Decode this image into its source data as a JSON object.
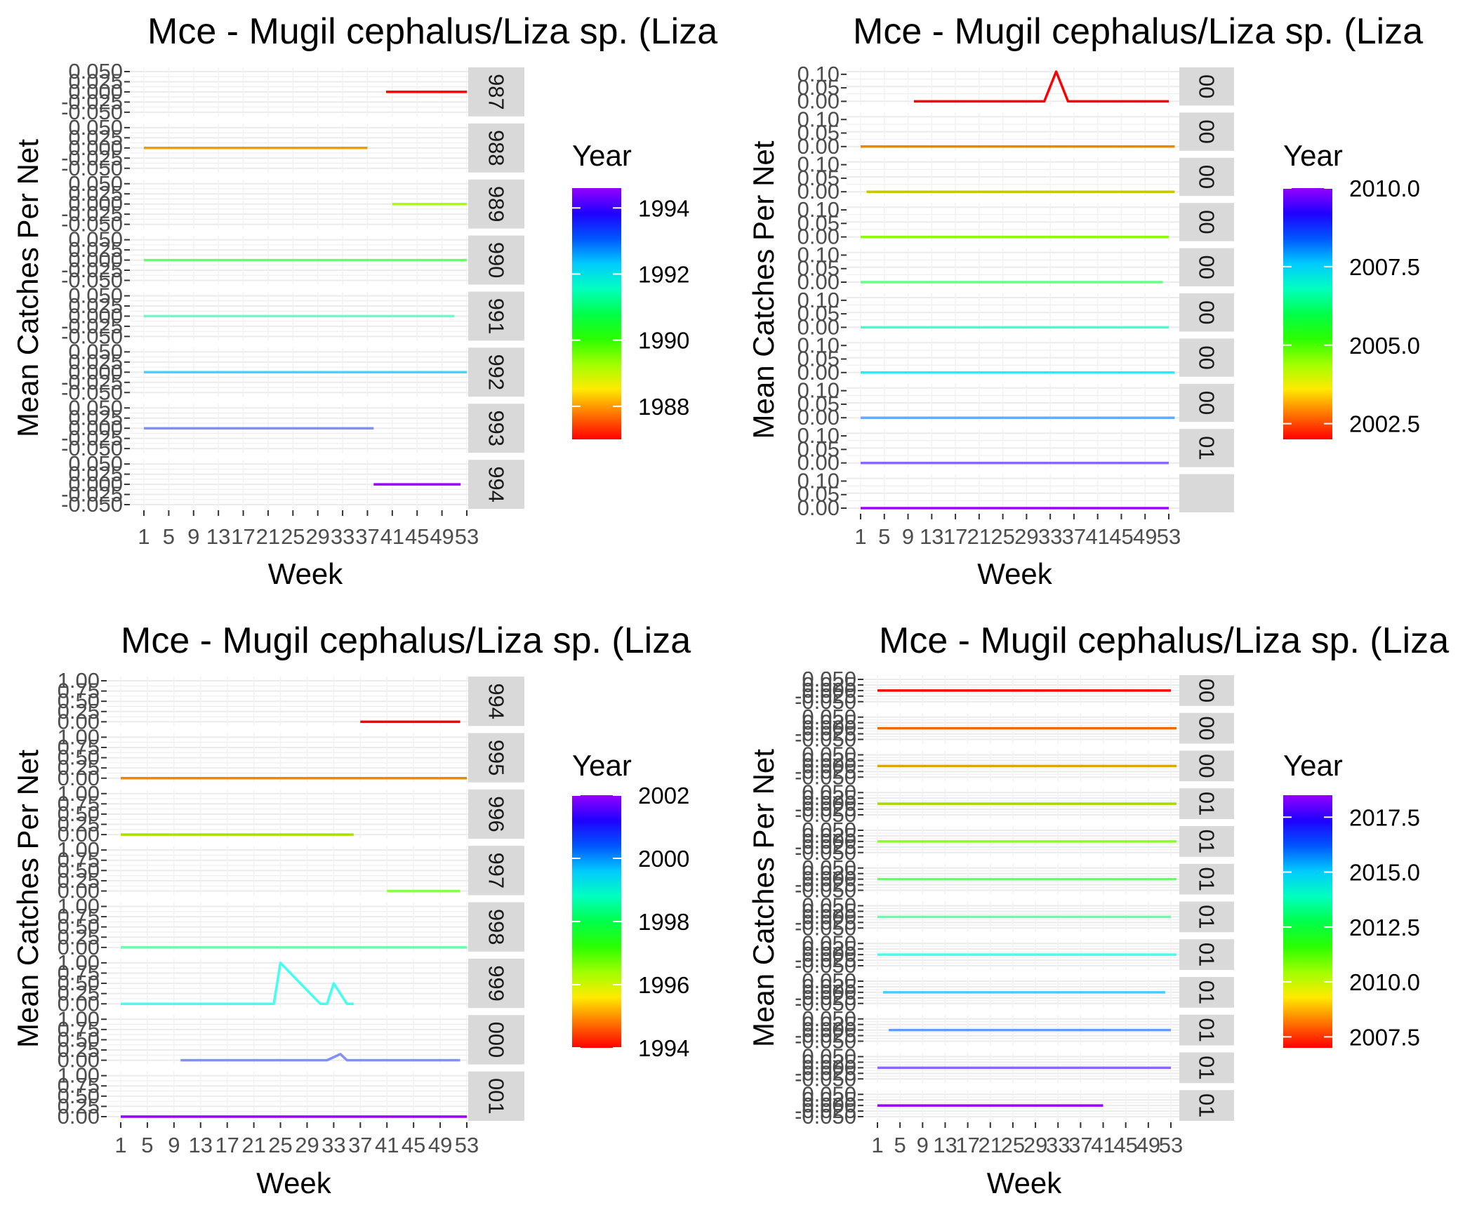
{
  "chart_data": [
    {
      "type": "line",
      "title": "Mce - Mugil cephalus/Liza sp. (Liza",
      "xlabel": "Week",
      "ylabel": "Mean Catches Per Net",
      "x_ticks": [
        "1",
        "5",
        "9",
        "13",
        "17",
        "21",
        "25",
        "29",
        "33",
        "37",
        "41",
        "45",
        "49",
        "53"
      ],
      "y_ticks": [
        "-0.050",
        "-0.025",
        "0.000",
        "0.025",
        "0.050"
      ],
      "ylim": [
        -0.05,
        0.05
      ],
      "strip_labels": [
        "987",
        "988",
        "989",
        "990",
        "991",
        "992",
        "993",
        "994"
      ],
      "legend": {
        "title": "Year",
        "labels": [
          "1994",
          "1992",
          "1990",
          "1988"
        ],
        "min": 1987,
        "max": 1994.6
      },
      "series": [
        {
          "year": 1987,
          "color": "#ff0000",
          "points": [
            [
              40,
              0
            ],
            [
              53,
              0
            ]
          ]
        },
        {
          "year": 1988,
          "color": "#e6a000",
          "points": [
            [
              1,
              0
            ],
            [
              37,
              0
            ]
          ]
        },
        {
          "year": 1989,
          "color": "#a8ff00",
          "points": [
            [
              41,
              0
            ],
            [
              53,
              0
            ]
          ]
        },
        {
          "year": 1990,
          "color": "#66ff66",
          "points": [
            [
              1,
              0
            ],
            [
              53,
              0
            ]
          ]
        },
        {
          "year": 1991,
          "color": "#66ffcc",
          "points": [
            [
              1,
              0
            ],
            [
              51,
              0
            ]
          ]
        },
        {
          "year": 1992,
          "color": "#44d4ff",
          "points": [
            [
              1,
              0
            ],
            [
              53,
              0
            ]
          ]
        },
        {
          "year": 1993,
          "color": "#7f8fff",
          "points": [
            [
              1,
              0
            ],
            [
              38,
              0
            ]
          ]
        },
        {
          "year": 1994,
          "color": "#9b00ff",
          "points": [
            [
              38,
              0
            ],
            [
              52,
              0
            ]
          ]
        }
      ]
    },
    {
      "type": "line",
      "title": "Mce - Mugil cephalus/Liza sp. (Liza",
      "xlabel": "Week",
      "ylabel": "Mean Catches Per Net",
      "x_ticks": [
        "1",
        "5",
        "9",
        "13",
        "17",
        "21",
        "25",
        "29",
        "33",
        "37",
        "41",
        "45",
        "49",
        "53"
      ],
      "y_ticks": [
        "0.00",
        "0.05",
        "0.10"
      ],
      "ylim": [
        0,
        0.11
      ],
      "strip_labels": [
        "00",
        "00",
        "00",
        "00",
        "00",
        "00",
        "00",
        "00",
        "01"
      ],
      "legend": {
        "title": "Year",
        "labels": [
          "2010.0",
          "2007.5",
          "2005.0",
          "2002.5"
        ],
        "min": 2002,
        "max": 2010
      },
      "series": [
        {
          "year": 2002,
          "color": "#ff0000",
          "points": [
            [
              10,
              0
            ],
            [
              32,
              0
            ],
            [
              34,
              0.11
            ],
            [
              36,
              0
            ],
            [
              53,
              0
            ]
          ]
        },
        {
          "year": 2003,
          "color": "#e68a00",
          "points": [
            [
              1,
              0
            ],
            [
              54,
              0
            ]
          ]
        },
        {
          "year": 2004,
          "color": "#c8c800",
          "points": [
            [
              2,
              0
            ],
            [
              54,
              0
            ]
          ]
        },
        {
          "year": 2005,
          "color": "#88ff00",
          "points": [
            [
              1,
              0
            ],
            [
              53,
              0
            ]
          ]
        },
        {
          "year": 2006,
          "color": "#66ff88",
          "points": [
            [
              1,
              0
            ],
            [
              52,
              0
            ]
          ]
        },
        {
          "year": 2007,
          "color": "#44ffcc",
          "points": [
            [
              1,
              0
            ],
            [
              53,
              0
            ]
          ]
        },
        {
          "year": 2008,
          "color": "#22eeff",
          "points": [
            [
              1,
              0
            ],
            [
              54,
              0
            ]
          ]
        },
        {
          "year": 2009,
          "color": "#66aaff",
          "points": [
            [
              1,
              0
            ],
            [
              54,
              0
            ]
          ]
        },
        {
          "year": 2010,
          "color": "#8866ff",
          "points": [
            [
              1,
              0
            ],
            [
              53,
              0
            ]
          ]
        },
        {
          "year": 2011,
          "color": "#9b00ff",
          "points": [
            [
              1,
              0
            ],
            [
              53,
              0
            ]
          ]
        }
      ]
    },
    {
      "type": "line",
      "title": "Mce - Mugil cephalus/Liza sp. (Liza",
      "xlabel": "Week",
      "ylabel": "Mean Catches Per Net",
      "x_ticks": [
        "1",
        "5",
        "9",
        "13",
        "17",
        "21",
        "25",
        "29",
        "33",
        "37",
        "41",
        "45",
        "49",
        "53"
      ],
      "y_ticks": [
        "0.00",
        "0.25",
        "0.50",
        "0.75",
        "1.00"
      ],
      "ylim": [
        0,
        1
      ],
      "strip_labels": [
        "994",
        "995",
        "996",
        "997",
        "998",
        "999",
        "000",
        "001"
      ],
      "legend": {
        "title": "Year",
        "labels": [
          "2002",
          "2000",
          "1998",
          "1996",
          "1994"
        ],
        "min": 1994,
        "max": 2002
      },
      "series": [
        {
          "year": 1994,
          "color": "#ff0000",
          "points": [
            [
              37,
              0
            ],
            [
              52,
              0
            ]
          ]
        },
        {
          "year": 1995,
          "color": "#e68a00",
          "points": [
            [
              1,
              0
            ],
            [
              53,
              0
            ]
          ]
        },
        {
          "year": 1996,
          "color": "#a8e000",
          "points": [
            [
              1,
              0
            ],
            [
              36,
              0
            ]
          ]
        },
        {
          "year": 1997,
          "color": "#88ff44",
          "points": [
            [
              41,
              0
            ],
            [
              52,
              0
            ]
          ]
        },
        {
          "year": 1998,
          "color": "#66ffaa",
          "points": [
            [
              1,
              0
            ],
            [
              53,
              0
            ]
          ]
        },
        {
          "year": 1999,
          "color": "#44ffee",
          "points": [
            [
              1,
              0
            ],
            [
              24,
              0
            ],
            [
              25,
              1
            ],
            [
              31,
              0
            ],
            [
              32,
              0
            ],
            [
              33,
              0.5
            ],
            [
              35,
              0
            ],
            [
              36,
              0
            ]
          ]
        },
        {
          "year": 2000,
          "color": "#7f8fff",
          "points": [
            [
              10,
              0
            ],
            [
              32,
              0
            ],
            [
              34,
              0.15
            ],
            [
              35,
              0
            ],
            [
              52,
              0
            ]
          ]
        },
        {
          "year": 2001,
          "color": "#9b00ff",
          "points": [
            [
              1,
              0
            ],
            [
              53,
              0
            ]
          ]
        }
      ]
    },
    {
      "type": "line",
      "title": "Mce - Mugil cephalus/Liza sp. (Liza",
      "xlabel": "Week",
      "ylabel": "Mean Catches Per Net",
      "x_ticks": [
        "1",
        "5",
        "9",
        "13",
        "17",
        "21",
        "25",
        "29",
        "33",
        "37",
        "41",
        "45",
        "49",
        "53"
      ],
      "y_ticks": [
        "-0.050",
        "-0.025",
        "0.000",
        "0.025",
        "0.050"
      ],
      "ylim": [
        -0.05,
        0.05
      ],
      "strip_labels": [
        "00",
        "00",
        "00",
        "01",
        "01",
        "01",
        "01",
        "01",
        "01",
        "01",
        "01",
        "01"
      ],
      "legend": {
        "title": "Year",
        "labels": [
          "2017.5",
          "2015.0",
          "2012.5",
          "2010.0",
          "2007.5"
        ],
        "min": 2007,
        "max": 2018.5
      },
      "series": [
        {
          "year": 2007,
          "color": "#ff0000",
          "points": [
            [
              1,
              0
            ],
            [
              53,
              0
            ]
          ]
        },
        {
          "year": 2008,
          "color": "#ee6a00",
          "points": [
            [
              1,
              0
            ],
            [
              54,
              0
            ]
          ]
        },
        {
          "year": 2009,
          "color": "#d8a800",
          "points": [
            [
              1,
              0
            ],
            [
              54,
              0
            ]
          ]
        },
        {
          "year": 2010,
          "color": "#a8d800",
          "points": [
            [
              1,
              0
            ],
            [
              54,
              0
            ]
          ]
        },
        {
          "year": 2011,
          "color": "#88ff22",
          "points": [
            [
              1,
              0
            ],
            [
              54,
              0
            ]
          ]
        },
        {
          "year": 2012,
          "color": "#66ff66",
          "points": [
            [
              1,
              0
            ],
            [
              54,
              0
            ]
          ]
        },
        {
          "year": 2013,
          "color": "#66ffaa",
          "points": [
            [
              1,
              0
            ],
            [
              53,
              0
            ]
          ]
        },
        {
          "year": 2014,
          "color": "#44ffee",
          "points": [
            [
              1,
              0
            ],
            [
              54,
              0
            ]
          ]
        },
        {
          "year": 2015,
          "color": "#44ccff",
          "points": [
            [
              2,
              0
            ],
            [
              52,
              0
            ]
          ]
        },
        {
          "year": 2016,
          "color": "#6699ff",
          "points": [
            [
              3,
              0
            ],
            [
              53,
              0
            ]
          ]
        },
        {
          "year": 2017,
          "color": "#8866ff",
          "points": [
            [
              1,
              0
            ],
            [
              53,
              0
            ]
          ]
        },
        {
          "year": 2018,
          "color": "#9b00ff",
          "points": [
            [
              1,
              0
            ],
            [
              41,
              0
            ]
          ]
        }
      ]
    }
  ]
}
